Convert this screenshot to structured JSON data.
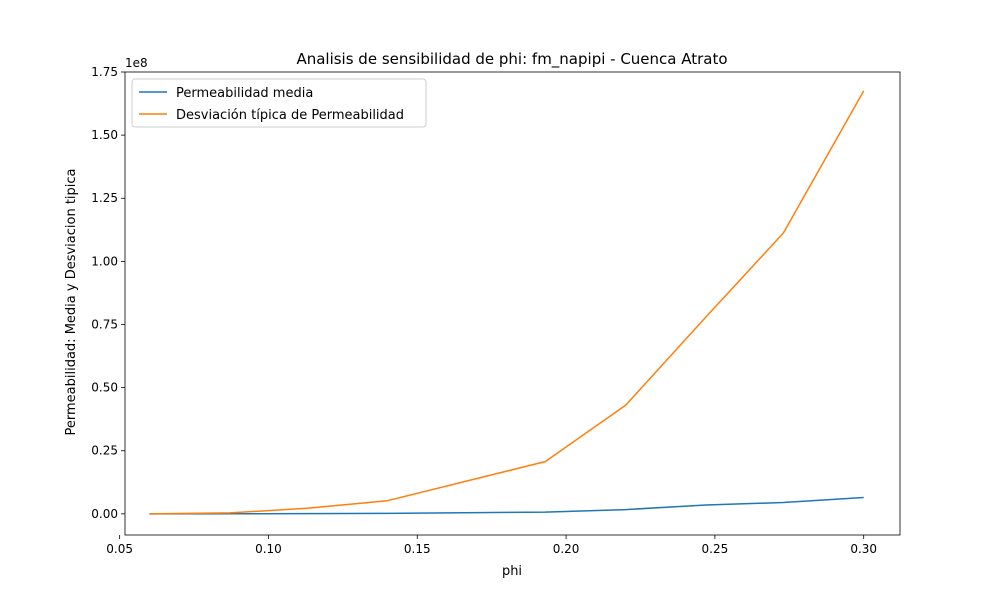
{
  "chart_data": {
    "type": "line",
    "title": "Analisis de sensibilidad de phi: fm_napipi - Cuenca Atrato",
    "xlabel": "phi",
    "ylabel": "Permeabilidad: Media y Desviacion tipica",
    "y_offset_label": "1e8",
    "xlim": [
      0.0518,
      0.3122
    ],
    "ylim": [
      -0.0837,
      1.75
    ],
    "x_ticks": [
      0.05,
      0.1,
      0.15,
      0.2,
      0.25,
      0.3
    ],
    "x_tick_labels": [
      "0.05",
      "0.10",
      "0.15",
      "0.20",
      "0.25",
      "0.30"
    ],
    "y_ticks": [
      0.0,
      0.25,
      0.5,
      0.75,
      1.0,
      1.25,
      1.5,
      1.75
    ],
    "y_tick_labels": [
      "0.00",
      "0.25",
      "0.50",
      "0.75",
      "1.00",
      "1.25",
      "1.50",
      "1.75"
    ],
    "grid": false,
    "legend": "upper-left",
    "x": [
      0.06,
      0.087,
      0.113,
      0.14,
      0.193,
      0.22,
      0.247,
      0.273,
      0.3
    ],
    "series": [
      {
        "name": "Permeabilidad media",
        "color": "#1f77b4",
        "values": [
          0.0,
          0.0003,
          0.001,
          0.002,
          0.007,
          0.017,
          0.035,
          0.045,
          0.065
        ]
      },
      {
        "name": "Desviación típica de Permeabilidad",
        "color": "#ff7f0e",
        "values": [
          0.0,
          0.004,
          0.022,
          0.052,
          0.207,
          0.43,
          0.78,
          1.112,
          1.675
        ]
      }
    ]
  }
}
